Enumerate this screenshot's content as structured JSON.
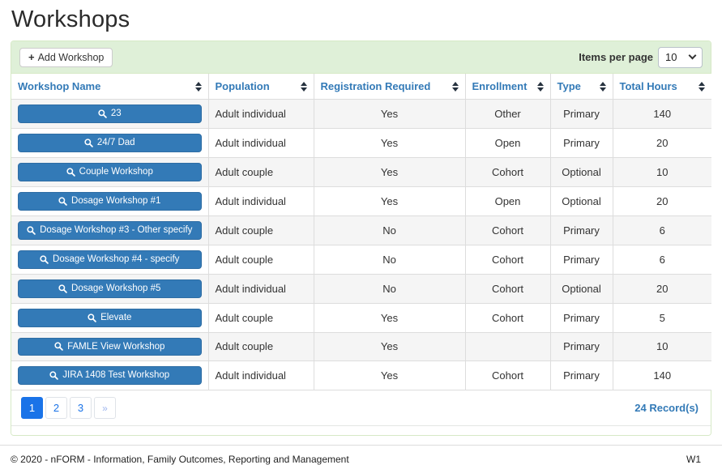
{
  "page": {
    "title": "Workshops"
  },
  "toolbar": {
    "add_button_label": "Add Workshop",
    "items_per_page_label": "Items per page",
    "items_per_page_value": "10"
  },
  "table": {
    "columns": [
      {
        "key": "name",
        "label": "Workshop Name"
      },
      {
        "key": "population",
        "label": "Population"
      },
      {
        "key": "registration_required",
        "label": "Registration Required"
      },
      {
        "key": "enrollment",
        "label": "Enrollment"
      },
      {
        "key": "type",
        "label": "Type"
      },
      {
        "key": "total_hours",
        "label": "Total Hours"
      }
    ],
    "rows": [
      {
        "name": "23",
        "population": "Adult individual",
        "registration_required": "Yes",
        "enrollment": "Other",
        "type": "Primary",
        "total_hours": "140"
      },
      {
        "name": "24/7 Dad",
        "population": "Adult individual",
        "registration_required": "Yes",
        "enrollment": "Open",
        "type": "Primary",
        "total_hours": "20"
      },
      {
        "name": "Couple Workshop",
        "population": "Adult couple",
        "registration_required": "Yes",
        "enrollment": "Cohort",
        "type": "Optional",
        "total_hours": "10"
      },
      {
        "name": "Dosage Workshop #1",
        "population": "Adult individual",
        "registration_required": "Yes",
        "enrollment": "Open",
        "type": "Optional",
        "total_hours": "20"
      },
      {
        "name": "Dosage Workshop #3 - Other specify",
        "population": "Adult couple",
        "registration_required": "No",
        "enrollment": "Cohort",
        "type": "Primary",
        "total_hours": "6"
      },
      {
        "name": "Dosage Workshop #4 - specify",
        "population": "Adult couple",
        "registration_required": "No",
        "enrollment": "Cohort",
        "type": "Primary",
        "total_hours": "6"
      },
      {
        "name": "Dosage Workshop #5",
        "population": "Adult individual",
        "registration_required": "No",
        "enrollment": "Cohort",
        "type": "Optional",
        "total_hours": "20"
      },
      {
        "name": "Elevate",
        "population": "Adult couple",
        "registration_required": "Yes",
        "enrollment": "Cohort",
        "type": "Primary",
        "total_hours": "5"
      },
      {
        "name": "FAMLE View Workshop",
        "population": "Adult couple",
        "registration_required": "Yes",
        "enrollment": "",
        "type": "Primary",
        "total_hours": "10"
      },
      {
        "name": "JIRA 1408 Test Workshop",
        "population": "Adult individual",
        "registration_required": "Yes",
        "enrollment": "Cohort",
        "type": "Primary",
        "total_hours": "140"
      }
    ]
  },
  "pagination": {
    "pages": [
      {
        "label": "1",
        "active": true,
        "muted": false
      },
      {
        "label": "2",
        "active": false,
        "muted": false
      },
      {
        "label": "3",
        "active": false,
        "muted": false
      },
      {
        "label": "»",
        "active": false,
        "muted": true
      }
    ],
    "records_text": "24 Record(s)"
  },
  "footer": {
    "copyright": "© 2020 - nFORM - Information, Family Outcomes, Reporting and Management",
    "version": "W1"
  },
  "colors": {
    "accent_blue": "#337ab7",
    "workshop_button_blue": "#337ab7",
    "toolbar_green_bg": "#dff0d8",
    "panel_border_green": "#d6e9c6",
    "pagination_active_blue": "#1a73e8",
    "row_stripe_gray": "#f5f5f5"
  }
}
